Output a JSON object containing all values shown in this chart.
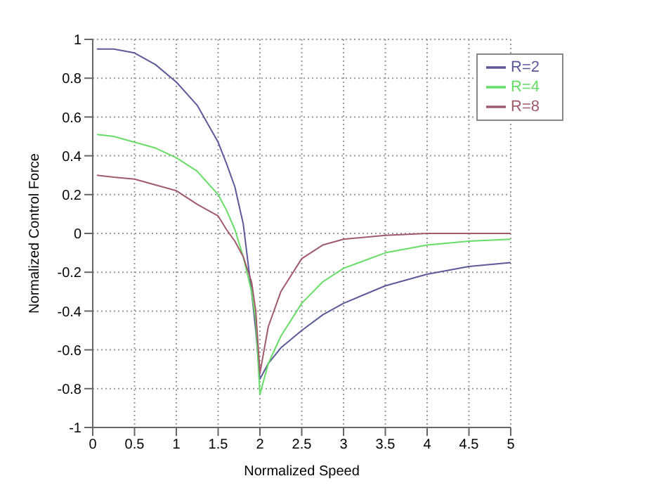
{
  "chart_data": {
    "type": "line",
    "xlabel": "Normalized Speed",
    "ylabel": "Normalized Control Force",
    "xlim": [
      0,
      5
    ],
    "ylim": [
      -1,
      1
    ],
    "xticks": [
      0,
      0.5,
      1,
      1.5,
      2,
      2.5,
      3,
      3.5,
      4,
      4.5,
      5
    ],
    "yticks": [
      -1,
      -0.8,
      -0.6,
      -0.4,
      -0.2,
      0,
      0.2,
      0.4,
      0.6,
      0.8,
      1
    ],
    "grid": true,
    "legend": "top right",
    "marker": "none",
    "line_style": "solid",
    "series": [
      {
        "name": "R=2",
        "color": "#5a5a9a",
        "x": [
          0.05,
          0.25,
          0.5,
          0.75,
          1,
          1.25,
          1.5,
          1.6,
          1.7,
          1.8,
          1.9,
          1.95,
          2,
          2.1,
          2.25,
          2.5,
          2.75,
          3,
          3.5,
          4,
          4.5,
          5
        ],
        "values": [
          0.95,
          0.95,
          0.93,
          0.87,
          0.78,
          0.66,
          0.47,
          0.36,
          0.24,
          0.05,
          -0.3,
          -0.5,
          -0.75,
          -0.67,
          -0.59,
          -0.5,
          -0.42,
          -0.36,
          -0.27,
          -0.21,
          -0.17,
          -0.15
        ]
      },
      {
        "name": "R=4",
        "color": "#66dd66",
        "x": [
          0.05,
          0.25,
          0.5,
          0.75,
          1,
          1.25,
          1.5,
          1.6,
          1.7,
          1.8,
          1.9,
          1.95,
          2,
          2.1,
          2.25,
          2.5,
          2.75,
          3,
          3.5,
          4,
          4.5,
          5
        ],
        "values": [
          0.51,
          0.5,
          0.47,
          0.44,
          0.39,
          0.32,
          0.2,
          0.12,
          0.02,
          -0.12,
          -0.3,
          -0.45,
          -0.83,
          -0.67,
          -0.53,
          -0.36,
          -0.25,
          -0.18,
          -0.1,
          -0.06,
          -0.04,
          -0.03
        ]
      },
      {
        "name": "R=8",
        "color": "#a05a6a",
        "x": [
          0.05,
          0.25,
          0.5,
          0.75,
          1,
          1.25,
          1.5,
          1.6,
          1.7,
          1.8,
          1.9,
          1.95,
          2,
          2.1,
          2.25,
          2.5,
          2.75,
          3,
          3.5,
          4,
          4.5,
          5
        ],
        "values": [
          0.3,
          0.29,
          0.28,
          0.25,
          0.22,
          0.15,
          0.09,
          0.02,
          -0.04,
          -0.12,
          -0.25,
          -0.4,
          -0.72,
          -0.48,
          -0.3,
          -0.13,
          -0.06,
          -0.03,
          -0.01,
          0,
          0,
          0
        ]
      }
    ]
  }
}
